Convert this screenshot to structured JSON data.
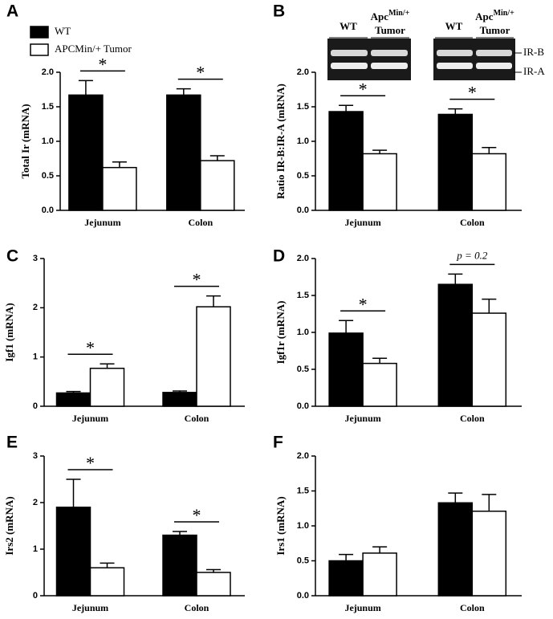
{
  "chart_data": [
    {
      "type": "bar",
      "panel": "A",
      "ylabel": "Total Ir (mRNA)",
      "categories": [
        "Jejunum",
        "Colon"
      ],
      "series": [
        {
          "name": "WT",
          "color": "#000000",
          "values": [
            1.67,
            1.67
          ],
          "errors": [
            0.21,
            0.09
          ]
        },
        {
          "name": "APCMin/+ Tumor",
          "color": "#ffffff",
          "values": [
            0.62,
            0.72
          ],
          "errors": [
            0.08,
            0.07
          ]
        }
      ],
      "legend": "upper left",
      "annotations": [
        "*",
        "*"
      ],
      "ylim": [
        0,
        2.0
      ],
      "yticks": [
        {
          "value": 0,
          "label": "0.0"
        },
        0.5,
        {
          "value": 1,
          "label": "1.0"
        },
        1.5,
        {
          "value": 2,
          "label": "2.0"
        }
      ]
    },
    {
      "type": "bar",
      "panel": "B",
      "ylabel": "Ratio IR-B:IR-A (mRNA)",
      "categories": [
        "Jejunum",
        "Colon"
      ],
      "series": [
        {
          "color": "#000000",
          "values": [
            1.43,
            1.39
          ],
          "errors": [
            0.09,
            0.08
          ]
        },
        {
          "color": "#ffffff",
          "values": [
            0.82,
            0.82
          ],
          "errors": [
            0.05,
            0.09
          ]
        }
      ],
      "annotations": [
        "*",
        "*"
      ],
      "gel": {
        "lanes": [
          {
            "text": "WT"
          },
          {
            "text": "Apc",
            "sup": "Min/+",
            "line2": "Tumor"
          },
          {
            "text": "WT"
          },
          {
            "text": "Apc",
            "sup": "Min/+",
            "line2": "Tumor"
          }
        ],
        "bands": [
          "IR-B",
          "IR-A"
        ]
      },
      "ylim": [
        0,
        2.0
      ],
      "yticks": [
        {
          "value": 0,
          "label": "0.0"
        },
        0.5,
        {
          "value": 1,
          "label": "1.0"
        },
        1.5,
        {
          "value": 2,
          "label": "2.0"
        }
      ]
    },
    {
      "type": "bar",
      "panel": "C",
      "ylabel": "Igf1 (mRNA)",
      "categories": [
        "Jejunum",
        "Colon"
      ],
      "series": [
        {
          "color": "#000000",
          "values": [
            0.27,
            0.28
          ],
          "errors": [
            0.03,
            0.03
          ]
        },
        {
          "color": "#ffffff",
          "values": [
            0.77,
            2.02
          ],
          "errors": [
            0.09,
            0.22
          ]
        }
      ],
      "annotations": [
        "*",
        "*"
      ],
      "ylim": [
        0,
        3
      ],
      "yticks": [
        0,
        1,
        2,
        3
      ]
    },
    {
      "type": "bar",
      "panel": "D",
      "ylabel": "Igf1r (mRNA)",
      "categories": [
        "Jejunum",
        "Colon"
      ],
      "series": [
        {
          "color": "#000000",
          "values": [
            0.99,
            1.65
          ],
          "errors": [
            0.17,
            0.14
          ]
        },
        {
          "color": "#ffffff",
          "values": [
            0.58,
            1.26
          ],
          "errors": [
            0.07,
            0.19
          ]
        }
      ],
      "annotations": [
        "*",
        "p = 0.2"
      ],
      "ylim": [
        0,
        2.0
      ],
      "yticks": [
        {
          "value": 0,
          "label": "0.0"
        },
        0.5,
        {
          "value": 1,
          "label": "1.0"
        },
        1.5,
        {
          "value": 2,
          "label": "2.0"
        }
      ]
    },
    {
      "type": "bar",
      "panel": "E",
      "ylabel": "Irs2 (mRNA)",
      "categories": [
        "Jejunum",
        "Colon"
      ],
      "series": [
        {
          "color": "#000000",
          "values": [
            1.9,
            1.3
          ],
          "errors": [
            0.6,
            0.08
          ]
        },
        {
          "color": "#ffffff",
          "values": [
            0.6,
            0.5
          ],
          "errors": [
            0.1,
            0.06
          ]
        }
      ],
      "annotations": [
        "*",
        "*"
      ],
      "ylim": [
        0,
        3
      ],
      "yticks": [
        0,
        1,
        2,
        3
      ]
    },
    {
      "type": "bar",
      "panel": "F",
      "ylabel": "Irs1 (mRNA)",
      "categories": [
        "Jejunum",
        "Colon"
      ],
      "series": [
        {
          "color": "#000000",
          "values": [
            0.5,
            1.33
          ],
          "errors": [
            0.09,
            0.14
          ]
        },
        {
          "color": "#ffffff",
          "values": [
            0.61,
            1.21
          ],
          "errors": [
            0.09,
            0.24
          ]
        }
      ],
      "ylim": [
        0,
        2.0
      ],
      "yticks": [
        {
          "value": 0,
          "label": "0.0"
        },
        0.5,
        {
          "value": 1,
          "label": "1.0"
        },
        1.5,
        {
          "value": 2,
          "label": "2.0"
        }
      ]
    }
  ]
}
